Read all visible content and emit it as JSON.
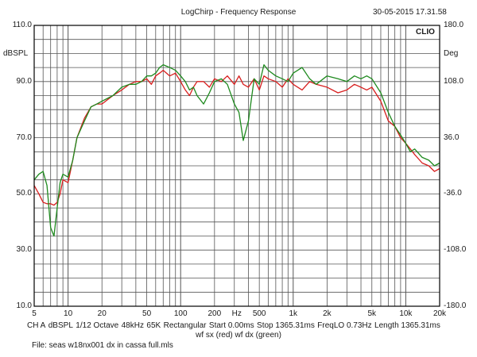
{
  "header": {
    "title": "LogChirp - Frequency Response",
    "timestamp": "30-05-2015 17.31.58",
    "brand": "CLIO"
  },
  "footer": {
    "settings": [
      "CH A",
      "dBSPL",
      "1/12 Octave",
      "48kHz",
      "65K",
      "Rectangular",
      "Start 0.00ms",
      "Stop 1365.31ms",
      "FreqLO 0.73Hz",
      "Length 1365.31ms"
    ],
    "legend": "wf sx (red) wf dx (green)",
    "file": "File: seas w18nx001 dx in cassa full.mls"
  },
  "colors": {
    "red": "#d81e1e",
    "green": "#1e8a1e",
    "grid": "#555555",
    "frame": "#000000"
  },
  "chart_data": {
    "type": "line",
    "x_scale": "log",
    "xlim": [
      5,
      20000
    ],
    "ylim": [
      10,
      110
    ],
    "ylabel": "dBSPL",
    "y2label": "Deg",
    "y2lim": [
      -180,
      180
    ],
    "x_tick_labels": [
      {
        "value": 5,
        "label": "5"
      },
      {
        "value": 10,
        "label": "10"
      },
      {
        "value": 20,
        "label": "20"
      },
      {
        "value": 50,
        "label": "50"
      },
      {
        "value": 100,
        "label": "100"
      },
      {
        "value": 200,
        "label": "200"
      },
      {
        "value": 500,
        "label": "500"
      },
      {
        "value": 1000,
        "label": "1k"
      },
      {
        "value": 2000,
        "label": "2k"
      },
      {
        "value": 5000,
        "label": "5k"
      },
      {
        "value": 10000,
        "label": "10k"
      },
      {
        "value": 20000,
        "label": "20k"
      }
    ],
    "x_mid_label": {
      "value": 315,
      "label": "Hz"
    },
    "y_tick_labels": [
      {
        "value": 110,
        "label": "110.0"
      },
      {
        "value": 90,
        "label": "90.0"
      },
      {
        "value": 70,
        "label": "70.0"
      },
      {
        "value": 50,
        "label": "50.0"
      },
      {
        "value": 30,
        "label": "30.0"
      },
      {
        "value": 10,
        "label": "10.0"
      }
    ],
    "y2_tick_labels": [
      {
        "value": 180,
        "label": "180.0"
      },
      {
        "value": 108,
        "label": "108.0"
      },
      {
        "value": 36,
        "label": "36.0"
      },
      {
        "value": -36,
        "label": "-36.0"
      },
      {
        "value": -108,
        "label": "-108.0"
      },
      {
        "value": -180,
        "label": "-180.0"
      }
    ],
    "series": [
      {
        "name": "wf sx (red)",
        "color": "#d81e1e",
        "x": [
          5,
          5.5,
          6,
          6.5,
          7,
          7.5,
          8,
          8.5,
          9,
          10,
          11,
          12,
          14,
          16,
          18,
          20,
          25,
          30,
          35,
          40,
          45,
          50,
          55,
          60,
          65,
          70,
          80,
          90,
          100,
          110,
          120,
          130,
          140,
          160,
          180,
          200,
          230,
          260,
          300,
          330,
          360,
          400,
          450,
          500,
          550,
          600,
          700,
          800,
          900,
          1000,
          1200,
          1400,
          1600,
          2000,
          2500,
          3000,
          3500,
          4000,
          4500,
          5000,
          6000,
          7000,
          8000,
          9000,
          10000,
          11000,
          12000,
          14000,
          16000,
          18000,
          20000
        ],
        "y": [
          53,
          50,
          47,
          46.5,
          46.5,
          46,
          47,
          50,
          55,
          54,
          62,
          70,
          77,
          81,
          82,
          82,
          85,
          87,
          89,
          90,
          90,
          91,
          89,
          92,
          93,
          94,
          92,
          93,
          90,
          87,
          85,
          88,
          90,
          90,
          88,
          91,
          90,
          92,
          89,
          92,
          89,
          88,
          91,
          87,
          92,
          91,
          90,
          88,
          91,
          89,
          87,
          90,
          89,
          88,
          86,
          87,
          89,
          88,
          87,
          88,
          83,
          76,
          74,
          70,
          68,
          66,
          64,
          61,
          60,
          58,
          59
        ]
      },
      {
        "name": "wf dx (green)",
        "color": "#1e8a1e",
        "x": [
          5,
          5.5,
          6,
          6.5,
          7,
          7.5,
          8,
          8.5,
          9,
          10,
          11,
          12,
          14,
          16,
          18,
          20,
          25,
          30,
          35,
          40,
          45,
          50,
          55,
          60,
          65,
          70,
          80,
          90,
          100,
          110,
          120,
          130,
          140,
          160,
          180,
          200,
          230,
          260,
          300,
          330,
          360,
          400,
          450,
          500,
          550,
          600,
          700,
          800,
          900,
          1000,
          1200,
          1400,
          1600,
          2000,
          2500,
          3000,
          3500,
          4000,
          4500,
          5000,
          6000,
          7000,
          8000,
          9000,
          10000,
          11000,
          12000,
          14000,
          16000,
          18000,
          20000
        ],
        "y": [
          55,
          57,
          58,
          53,
          38,
          35,
          45,
          54,
          57,
          56,
          62,
          70,
          76,
          81,
          82,
          83,
          85,
          88,
          89,
          89,
          90,
          92,
          92,
          93,
          95,
          96,
          95,
          94,
          92,
          90,
          87,
          88,
          85,
          82,
          86,
          90,
          91,
          89,
          82,
          79,
          69,
          76,
          91,
          89,
          96,
          94,
          92,
          91,
          90,
          93,
          95,
          91,
          89,
          92,
          91,
          90,
          92,
          91,
          92,
          91,
          86,
          79,
          74,
          71,
          68,
          65,
          66,
          63,
          62,
          60,
          61
        ]
      }
    ]
  }
}
